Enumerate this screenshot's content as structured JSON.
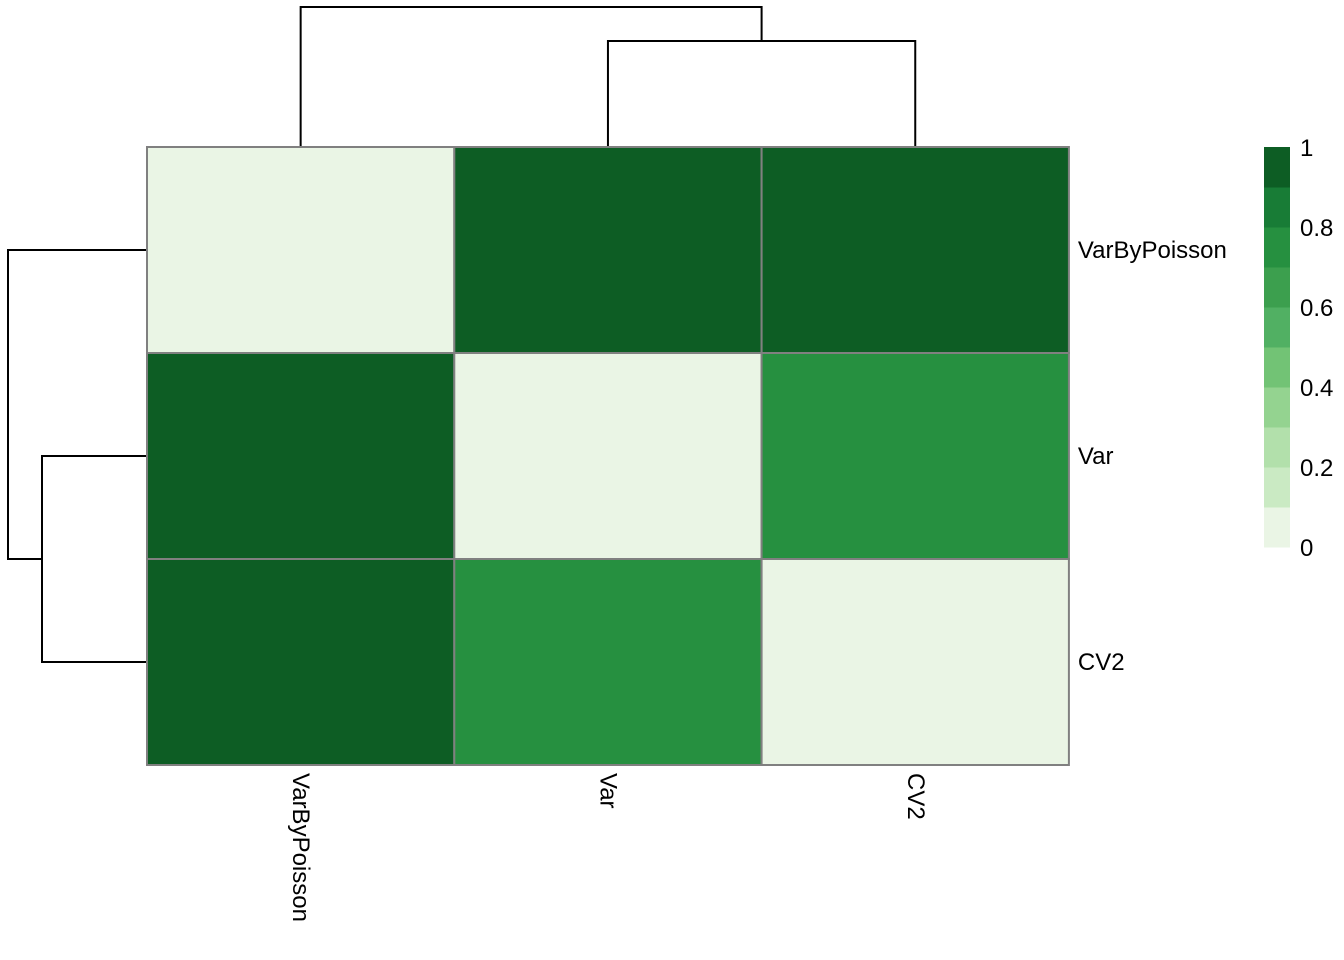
{
  "chart_data": {
    "type": "heatmap",
    "title": "",
    "rows": [
      "VarByPoisson",
      "Var",
      "CV2"
    ],
    "columns": [
      "VarByPoisson",
      "Var",
      "CV2"
    ],
    "values": [
      [
        0,
        1,
        1
      ],
      [
        1,
        0,
        0.75
      ],
      [
        1,
        0.75,
        0
      ]
    ],
    "color_scale": {
      "min": 0,
      "max": 1,
      "colors": [
        "#EAF5E5",
        "#CAEAC3",
        "#B2E0AB",
        "#94D390",
        "#72C375",
        "#51B063",
        "#3C9F4E",
        "#269040",
        "#187C36",
        "#0D5D24"
      ]
    },
    "legend": {
      "ticks": [
        "0",
        "0.2",
        "0.4",
        "0.6",
        "0.8",
        "1"
      ],
      "placement": "right"
    },
    "row_dendrogram": true,
    "column_dendrogram": true
  }
}
